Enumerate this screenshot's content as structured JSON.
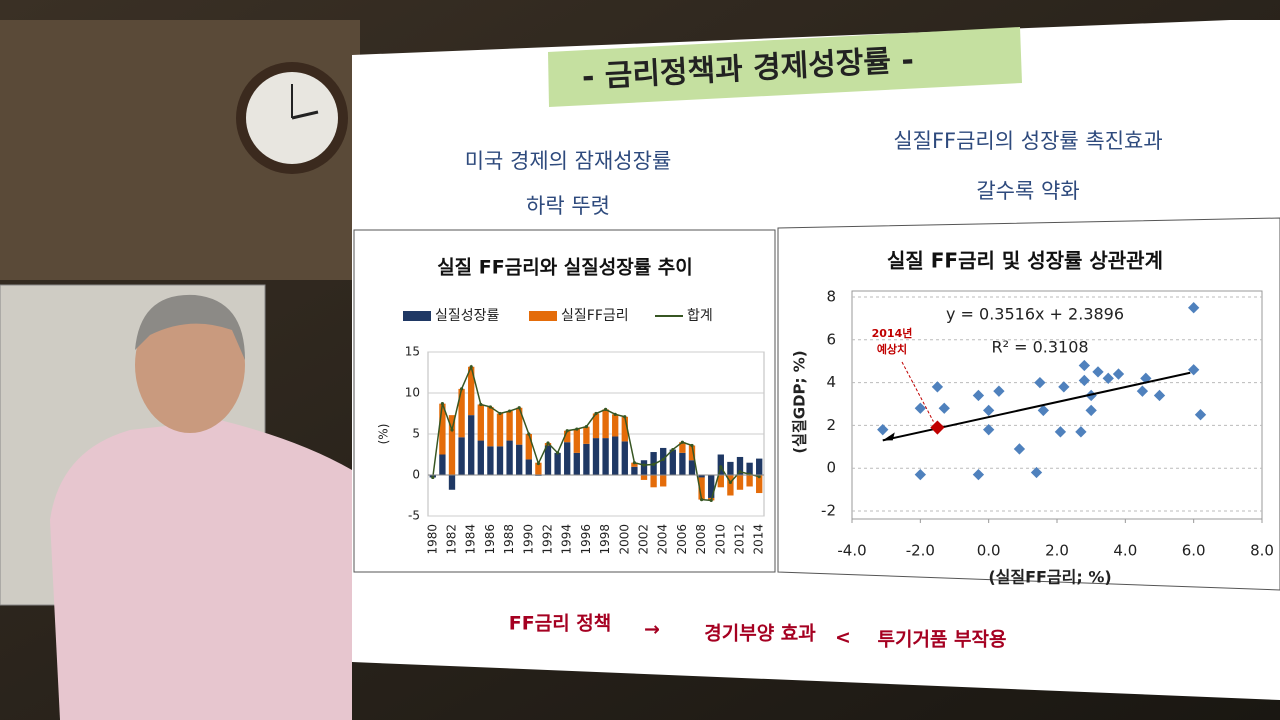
{
  "slide": {
    "title": "- 금리정책과 경제성장률 -",
    "left_heading": [
      "미국 경제의 잠재성장률",
      "하락 뚜렷"
    ],
    "right_heading": [
      "실질FF금리의 성장률 촉진효과",
      "갈수록 약화"
    ],
    "footer": {
      "policy": "FF금리 정책",
      "arrow": "→",
      "effect": "경기부양 효과",
      "compare": "<",
      "side_effect": "투기거품 부작용"
    }
  },
  "chart_data": [
    {
      "type": "bar",
      "title": "실질 FF금리와 실질성장률 추이",
      "ylabel": "(%)",
      "categories": [
        "1980",
        null,
        "1982",
        null,
        "1984",
        null,
        "1986",
        null,
        "1988",
        null,
        "1990",
        null,
        "1992",
        null,
        "1994",
        null,
        "1996",
        null,
        "1998",
        null,
        "2000",
        null,
        "2002",
        null,
        "2004",
        null,
        "2006",
        null,
        "2008",
        null,
        "2010",
        null,
        "2012",
        null,
        "2014"
      ],
      "series": [
        {
          "name": "실질성장률",
          "color": "#1f3864",
          "values": [
            -0.3,
            2.5,
            -1.8,
            4.6,
            7.3,
            4.2,
            3.5,
            3.5,
            4.2,
            3.7,
            1.9,
            -0.1,
            3.6,
            2.7,
            4.0,
            2.7,
            3.8,
            4.5,
            4.5,
            4.7,
            4.1,
            1.0,
            1.8,
            2.8,
            3.3,
            3.1,
            2.7,
            1.8,
            -0.3,
            -2.8,
            2.5,
            1.6,
            2.2,
            1.5,
            2.0
          ]
        },
        {
          "name": "실질FF금리",
          "color": "#e46c0a",
          "values": [
            0.0,
            6.2,
            7.3,
            5.9,
            5.9,
            4.4,
            4.8,
            4.0,
            3.6,
            4.5,
            3.1,
            1.5,
            0.3,
            0.0,
            1.4,
            2.9,
            2.1,
            3.0,
            3.5,
            2.7,
            3.0,
            0.5,
            -0.6,
            -1.5,
            -1.4,
            0.0,
            1.3,
            1.8,
            -2.7,
            -0.3,
            -1.5,
            -2.5,
            -1.8,
            -1.4,
            -2.2
          ]
        },
        {
          "name": "합계",
          "color": "#375623",
          "values": [
            -0.3,
            8.7,
            5.5,
            10.5,
            13.2,
            8.6,
            8.3,
            7.5,
            7.8,
            8.2,
            5.0,
            1.4,
            3.9,
            2.7,
            5.4,
            5.6,
            5.9,
            7.5,
            8.0,
            7.4,
            7.1,
            1.5,
            1.2,
            1.3,
            1.9,
            3.1,
            4.0,
            3.6,
            -3.0,
            -3.1,
            1.0,
            -0.9,
            0.4,
            0.1,
            -0.2
          ]
        }
      ],
      "ylim": [
        -5,
        15
      ],
      "yticks": [
        -5,
        0,
        5,
        10,
        15
      ],
      "grid": true
    },
    {
      "type": "scatter",
      "title": "실질 FF금리 및 성장률 상관관계",
      "xlabel": "(실질FF금리; %)",
      "ylabel": "(실질GDP; %)",
      "equation": "y = 0.3516x + 2.3896",
      "r_squared": "R² = 0.3108",
      "points": {
        "color": "#4f81bd",
        "x": [
          -3.1,
          -2.0,
          -2.0,
          -1.5,
          -1.3,
          -0.3,
          -0.3,
          0.0,
          0.0,
          0.3,
          0.9,
          1.4,
          1.5,
          1.6,
          2.1,
          2.2,
          2.7,
          2.8,
          2.8,
          3.0,
          3.0,
          3.2,
          3.5,
          3.8,
          4.5,
          4.6,
          5.0,
          6.0,
          6.0,
          6.2
        ],
        "y": [
          1.8,
          -0.3,
          2.8,
          3.8,
          2.8,
          3.4,
          -0.3,
          2.7,
          1.8,
          3.6,
          0.9,
          -0.2,
          4.0,
          2.7,
          1.7,
          3.8,
          1.7,
          4.8,
          4.1,
          3.4,
          2.7,
          4.5,
          4.2,
          4.4,
          3.6,
          4.2,
          3.4,
          7.5,
          4.6,
          2.5
        ]
      },
      "highlight": {
        "x": -1.5,
        "y": 1.9,
        "color": "#c00000",
        "label": [
          "2014년",
          "예상치"
        ]
      },
      "trendline": {
        "x": [
          -3.1,
          5.9
        ],
        "y": [
          1.3,
          4.46
        ],
        "color": "#000000"
      },
      "xlim": [
        -4,
        8
      ],
      "xticks": [
        {
          "value": -4,
          "label": "-4.0"
        },
        {
          "value": -2,
          "label": "-2.0"
        },
        {
          "value": 0,
          "label": "0.0"
        },
        {
          "value": 2,
          "label": "2.0"
        },
        {
          "value": 4,
          "label": "4.0"
        },
        {
          "value": 6,
          "label": "6.0"
        },
        {
          "value": 8,
          "label": "8.0"
        }
      ],
      "ylim": [
        -2,
        8
      ],
      "yticks": [
        -2,
        0,
        2,
        4,
        6,
        8
      ],
      "grid": true
    }
  ]
}
